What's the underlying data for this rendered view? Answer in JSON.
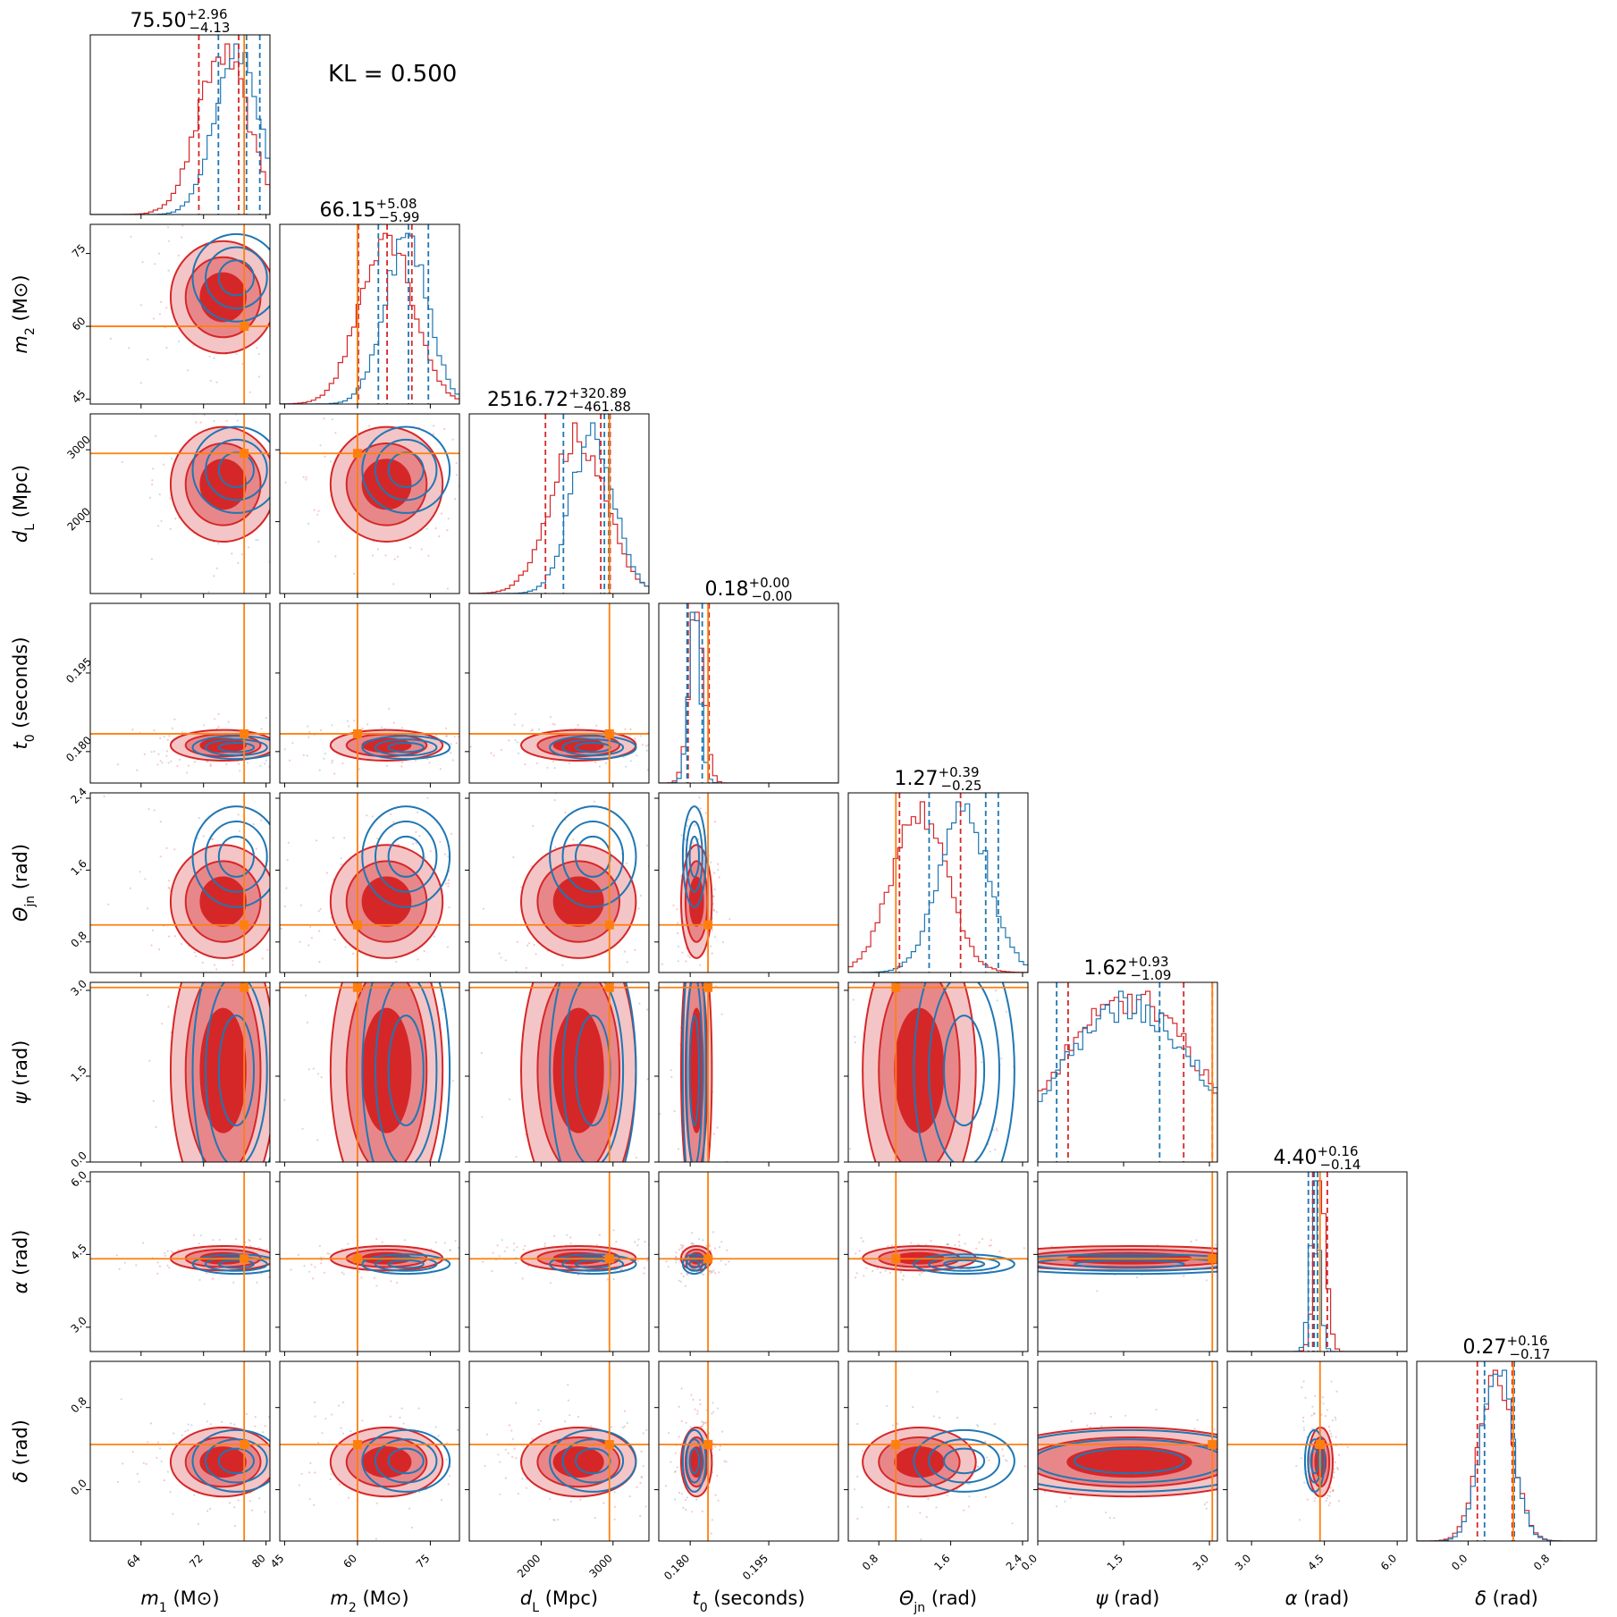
{
  "kl_text": "KL = 0.500",
  "colors": {
    "red": "#d62728",
    "red_mid": "#e8878a",
    "red_light": "#f4c5c6",
    "blue": "#1f77b4",
    "truth": "#ff7f0e"
  },
  "chart_data": {
    "type": "corner",
    "parameters": [
      {
        "key": "m1",
        "label_html": "m<tspan class='sub' baseline-shift='sub'>1</tspan> (M<tspan class='sub' baseline-shift='sub'>⊙</tspan>)",
        "label_text": "m1 (M⊙)",
        "title_value": "75.50",
        "title_plus": "+2.96",
        "title_minus": "−4.13",
        "range": [
          57.5,
          80.5
        ],
        "ticks": [
          64,
          72,
          80
        ],
        "truth": 77.2,
        "red_quantiles": [
          71.4,
          76.5
        ],
        "blue_quantiles": [
          73.9,
          77.5,
          79.2
        ],
        "red_center": [
          74.5,
          3.2
        ],
        "blue_center": [
          76.2,
          2.8
        ]
      },
      {
        "key": "m2",
        "label_text": "m2 (M⊙)",
        "title_value": "66.15",
        "title_plus": "+5.08",
        "title_minus": "−5.99",
        "range": [
          44,
          81
        ],
        "ticks": [
          45,
          60,
          75
        ],
        "truth": 60,
        "red_quantiles": [
          60.2,
          66.1,
          71.2
        ],
        "blue_quantiles": [
          64.3,
          70.5,
          74.6
        ],
        "red_center": [
          66.0,
          5.5
        ],
        "blue_center": [
          70.0,
          4.5
        ]
      },
      {
        "key": "dL",
        "label_text": "dL (Mpc)",
        "title_value": "2516.72",
        "title_plus": "+320.89",
        "title_minus": "−461.88",
        "range": [
          1000,
          3500
        ],
        "ticks": [
          2000,
          3000
        ],
        "truth": 2950,
        "red_quantiles": [
          2060,
          2830,
          2960
        ],
        "blue_quantiles": [
          2310,
          2880,
          2940
        ],
        "red_center": [
          2520,
          380
        ],
        "blue_center": [
          2720,
          300
        ]
      },
      {
        "key": "t0",
        "label_text": "t0 (seconds)",
        "title_value": "0.18",
        "title_plus": "+0.00",
        "title_minus": "−0.00",
        "range": [
          0.174,
          0.2083
        ],
        "ticks": [
          0.18,
          0.195
        ],
        "truth": 0.1834,
        "red_quantiles": [
          0.1796,
          0.1836
        ],
        "blue_quantiles": [
          0.1794,
          0.1823
        ],
        "red_center": [
          0.1812,
          0.0014
        ],
        "blue_center": [
          0.1808,
          0.0011
        ]
      },
      {
        "key": "theta_jn",
        "label_text": "Θjn (rad)",
        "title_value": "1.27",
        "title_plus": "+0.39",
        "title_minus": "−0.25",
        "range": [
          0.46,
          2.46
        ],
        "ticks": [
          0.8,
          1.6,
          2.4
        ],
        "truth": 0.99,
        "red_quantiles": [
          1.03,
          1.71
        ],
        "blue_quantiles": [
          1.36,
          1.99,
          2.13
        ],
        "red_center": [
          1.25,
          0.3
        ],
        "blue_center": [
          1.75,
          0.28
        ]
      },
      {
        "key": "psi",
        "label_text": "ψ (rad)",
        "title_value": "1.62",
        "title_plus": "+0.93",
        "title_minus": "−1.09",
        "range": [
          0.0,
          3.14
        ],
        "ticks": [
          0.0,
          1.5,
          3.0
        ],
        "truth": 3.05,
        "red_quantiles": [
          0.53,
          2.55,
          3.05
        ],
        "blue_quantiles": [
          0.33,
          2.13
        ],
        "red_center": [
          1.6,
          1.2
        ],
        "blue_center": [
          1.6,
          1.2
        ]
      },
      {
        "key": "alpha",
        "label_text": "α (rad)",
        "title_value": "4.40",
        "title_plus": "+0.16",
        "title_minus": "−0.14",
        "range": [
          2.5,
          6.2
        ],
        "ticks": [
          3.0,
          4.5,
          6.0
        ],
        "truth": 4.41,
        "red_quantiles": [
          4.26,
          4.56
        ],
        "blue_quantiles": [
          4.17,
          4.29,
          4.36
        ],
        "red_center": [
          4.42,
          0.12
        ],
        "blue_center": [
          4.3,
          0.1
        ]
      },
      {
        "key": "delta",
        "label_text": "δ (rad)",
        "title_value": "0.27",
        "title_plus": "+0.16",
        "title_minus": "−0.17",
        "range": [
          -0.5,
          1.25
        ],
        "ticks": [
          0.0,
          0.8
        ],
        "truth": 0.44,
        "red_quantiles": [
          0.09,
          0.43
        ],
        "blue_quantiles": [
          0.16,
          0.45
        ],
        "red_center": [
          0.27,
          0.16
        ],
        "blue_center": [
          0.28,
          0.15
        ]
      }
    ]
  }
}
